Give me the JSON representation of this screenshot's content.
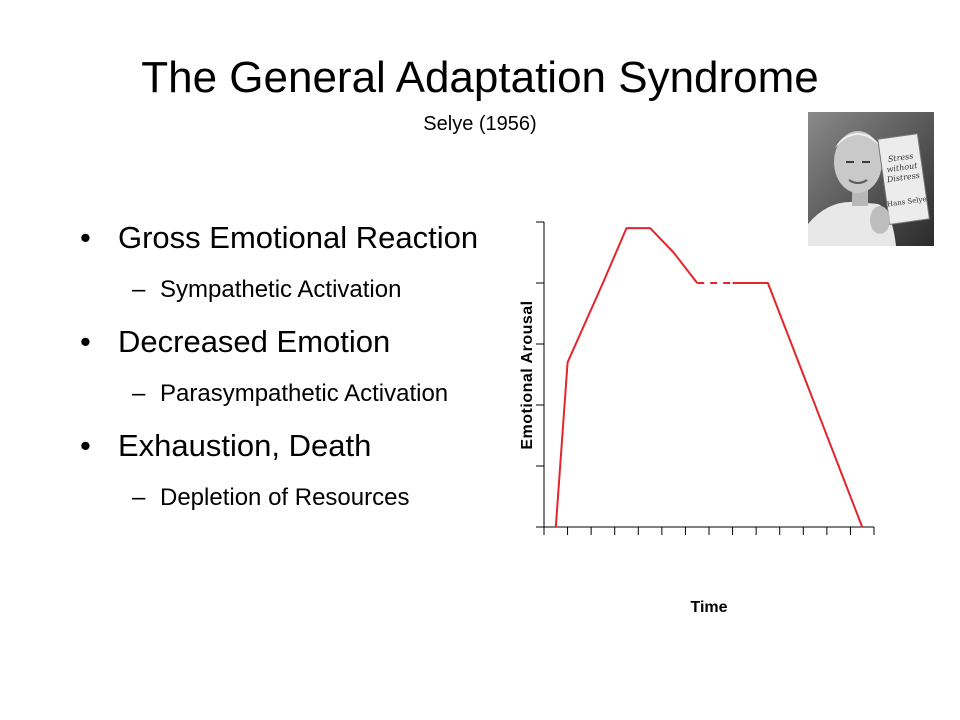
{
  "slide": {
    "title": "The General Adaptation Syndrome",
    "subtitle": "Selye (1956)"
  },
  "bullets": [
    {
      "label": "Gross Emotional Reaction",
      "sub": "Sympathetic Activation"
    },
    {
      "label": "Decreased Emotion",
      "sub": "Parasympathetic Activation"
    },
    {
      "label": "Exhaustion, Death",
      "sub": "Depletion of Resources"
    }
  ],
  "bullet_glyph": "•",
  "dash_glyph": "–",
  "portrait": {
    "icon": "selye-portrait-photo",
    "book_title_lines": [
      "Stress",
      "without",
      "Distress"
    ],
    "book_author": "Hans Selye"
  },
  "chart_data": {
    "type": "line",
    "title": "",
    "xlabel": "Time",
    "ylabel": "Emotional Arousal",
    "xlim": [
      0,
      14
    ],
    "ylim": [
      0,
      5
    ],
    "grid": false,
    "line_color": "#e3262b",
    "series": [
      {
        "style": "solid",
        "x": [
          0.5,
          1.0,
          2.5,
          3.5,
          4.5,
          5.5,
          6.5
        ],
        "y": [
          0.0,
          2.7,
          4.0,
          4.9,
          4.9,
          4.5,
          4.0
        ]
      },
      {
        "style": "dashed",
        "x": [
          6.5,
          8.0
        ],
        "y": [
          4.0,
          4.0
        ]
      },
      {
        "style": "solid",
        "x": [
          8.0,
          9.5,
          13.5
        ],
        "y": [
          4.0,
          4.0,
          0.0
        ]
      }
    ]
  }
}
